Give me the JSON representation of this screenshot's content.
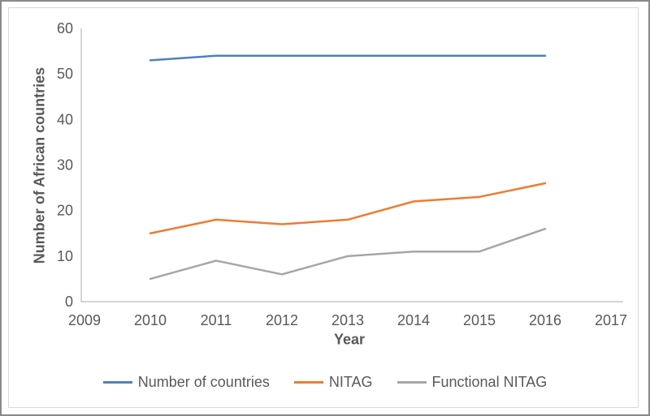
{
  "figure": {
    "background": "#ffffff",
    "outer_border_color": "#8a8a8a",
    "inner_border_color": "#d9d9d9",
    "axis_color": "#c9c9c9",
    "text_color": "#595959"
  },
  "chart_data": {
    "type": "line",
    "title": "",
    "xlabel": "Year",
    "ylabel": "Number of African countries",
    "x": [
      2010,
      2011,
      2012,
      2013,
      2014,
      2015,
      2016
    ],
    "x_axis_ticks": [
      "2009",
      "2010",
      "2011",
      "2012",
      "2013",
      "2014",
      "2015",
      "2016",
      "2017"
    ],
    "y_ticks": [
      "0",
      "10",
      "20",
      "30",
      "40",
      "50",
      "60"
    ],
    "y_tick_values": [
      0,
      10,
      20,
      30,
      40,
      50,
      60
    ],
    "xlim": [
      2009,
      2017
    ],
    "ylim": [
      0,
      60
    ],
    "grid": false,
    "legend_position": "bottom",
    "series": [
      {
        "name": "Number of countries",
        "color": "#4e81bd",
        "values": [
          53,
          54,
          54,
          54,
          54,
          54,
          54
        ]
      },
      {
        "name": "NITAG",
        "color": "#ed7d31",
        "values": [
          15,
          18,
          17,
          18,
          22,
          23,
          26
        ]
      },
      {
        "name": "Functional NITAG",
        "color": "#a6a6a6",
        "values": [
          5,
          9,
          6,
          10,
          11,
          11,
          16
        ]
      }
    ]
  }
}
